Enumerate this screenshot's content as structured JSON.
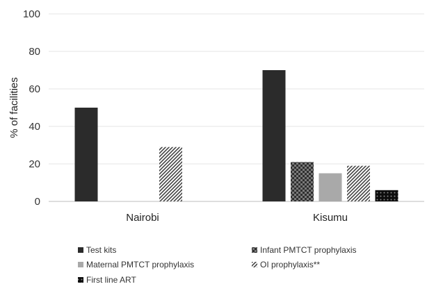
{
  "chart_data": {
    "type": "bar",
    "title": "",
    "xlabel": "",
    "ylabel": "% of facilities",
    "ylim": [
      0,
      100
    ],
    "yticks": [
      0,
      20,
      40,
      60,
      80,
      100
    ],
    "categories": [
      "Nairobi",
      "Kisumu"
    ],
    "grid": true,
    "legend_position": "bottom",
    "series": [
      {
        "name": "Test kits",
        "values": [
          50,
          70
        ],
        "color": "#2b2b2b",
        "pattern": "solid"
      },
      {
        "name": "Infant PMTCT prophylaxis",
        "values": [
          0,
          21
        ],
        "color": "#3a3a3a",
        "pattern": "checker"
      },
      {
        "name": "Maternal PMTCT prophylaxis",
        "values": [
          0,
          15
        ],
        "color": "#a9a9a9",
        "pattern": "solid"
      },
      {
        "name": "OI prophylaxis**",
        "values": [
          29,
          19
        ],
        "color": "#555555",
        "pattern": "diagonal"
      },
      {
        "name": "First line ART",
        "values": [
          0,
          6
        ],
        "color": "#111111",
        "pattern": "dots"
      }
    ]
  }
}
